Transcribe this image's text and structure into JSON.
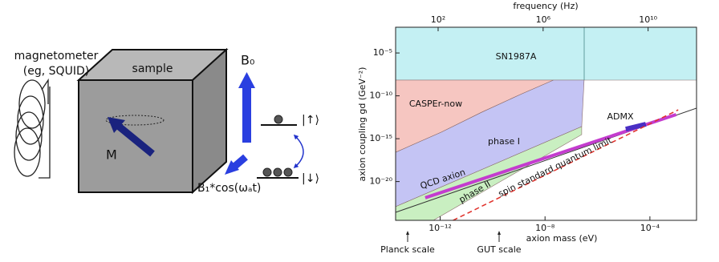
{
  "diagram": {
    "magnetometer": "magnetometer",
    "magnetometer_note": "(eg, SQUID)",
    "sample": "sample",
    "b0": "B₀",
    "m": "M",
    "b1": "B₁*cos(ωₐt)",
    "spin_up": "|↑⟩",
    "spin_down": "|↓⟩"
  },
  "chart_data": {
    "type": "region-line",
    "xlabel": "axion mass (eV)",
    "ylabel": "axion coupling gd (GeV⁻²)",
    "x2label": "frequency (Hz)",
    "log_x": true,
    "log_y": true,
    "log_x2": true,
    "xlim": [
      2e-14,
      0.006
    ],
    "ylim": [
      3e-25,
      0.01
    ],
    "x2lim": [
      2.4,
      700000000000.0
    ],
    "xticks": [
      {
        "value": 1e-12,
        "label": "10⁻¹²"
      },
      {
        "value": 1e-08,
        "label": "10⁻⁸"
      },
      {
        "value": 0.0001,
        "label": "10⁻⁴"
      }
    ],
    "yticks": [
      {
        "value": 1e-05,
        "label": "10⁻⁵"
      },
      {
        "value": 1e-10,
        "label": "10⁻¹⁰"
      },
      {
        "value": 1e-15,
        "label": "10⁻¹⁵"
      },
      {
        "value": 1e-20,
        "label": "10⁻²⁰"
      }
    ],
    "x2ticks": [
      {
        "value": 100.0,
        "label": "10²"
      },
      {
        "value": 1000000.0,
        "label": "10⁶"
      },
      {
        "value": 10000000000.0,
        "label": "10¹⁰"
      }
    ],
    "annotations": [
      "Planck scale",
      "GUT scale"
    ],
    "series": [
      {
        "name": "SN1987A",
        "kind": "region",
        "color": "#c4f0f3",
        "x": [
          2e-14,
          0.006,
          0.006,
          2e-14
        ],
        "y": [
          0.01,
          0.01,
          6.8e-09,
          6.8e-09
        ]
      },
      {
        "name": "CASPEr-now",
        "kind": "region",
        "color": "#f6c6c1",
        "x": [
          2e-14,
          2.1e-08,
          1.3e-09,
          3.8e-11,
          1.1e-12,
          2e-14
        ],
        "y": [
          6.8e-09,
          6.8e-09,
          1.7e-10,
          1.2e-12,
          5.7e-15,
          2.6e-17
        ]
      },
      {
        "name": "phase I",
        "kind": "region",
        "color": "#c4c4f4",
        "x": [
          2e-14,
          1.1e-12,
          3.8e-11,
          1.3e-09,
          2.1e-08,
          3.1e-07,
          2.5e-07,
          2e-14
        ],
        "y": [
          2.6e-17,
          5.7e-15,
          1.2e-12,
          1.7e-10,
          6.8e-09,
          6.8e-09,
          2.6e-14,
          1.2e-23
        ]
      },
      {
        "name": "phase II",
        "kind": "region",
        "color": "#c9efc1",
        "x": [
          2e-14,
          2.5e-07,
          2.5e-07,
          5.5e-13,
          2e-14
        ],
        "y": [
          1.2e-23,
          2.6e-14,
          3e-15,
          3e-25,
          3e-25
        ]
      },
      {
        "kind": "line",
        "color": "#333333",
        "width": 1,
        "x": [
          2e-14,
          0.006
        ],
        "y": [
          2.6e-24,
          3.6e-12
        ]
      },
      {
        "name": "QCD axion",
        "kind": "line",
        "color": "#c43ccf",
        "width": 4,
        "x": [
          2.7e-13,
          0.001
        ],
        "y": [
          1.3e-22,
          6.5e-13
        ]
      },
      {
        "name": "ADMX",
        "kind": "line",
        "color": "#4a2fc4",
        "width": 6,
        "x": [
          1.2e-05,
          7e-05
        ],
        "y": [
          1.3e-14,
          4.9e-14
        ]
      },
      {
        "name": "spin standard quantum limit",
        "kind": "dashed",
        "color": "#e0302a",
        "width": 1.5,
        "x": [
          3.1e-12,
          0.0012
        ],
        "y": [
          3e-25,
          2.3e-12
        ]
      }
    ]
  }
}
